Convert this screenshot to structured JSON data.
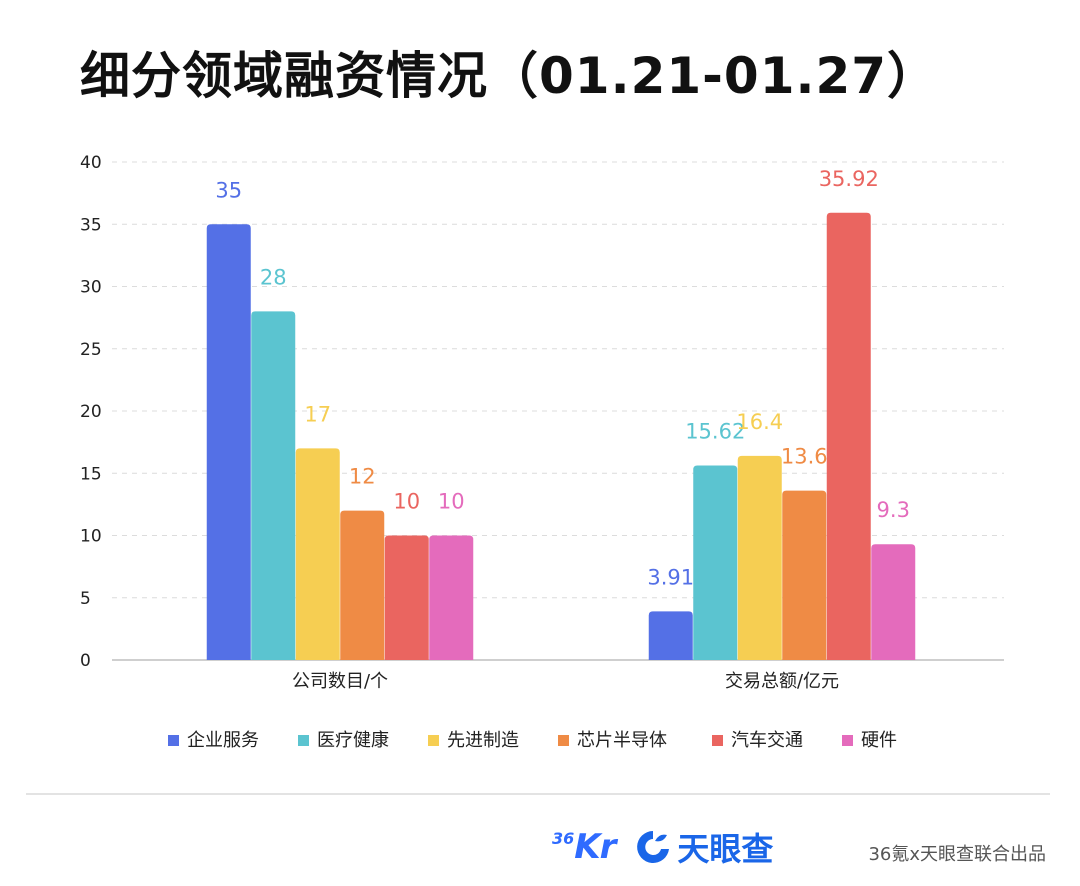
{
  "title": "细分领域融资情况（01.21-01.27）",
  "chart_data": {
    "type": "bar",
    "categories": [
      "公司数目/个",
      "交易总额/亿元"
    ],
    "series": [
      {
        "name": "企业服务",
        "color": "#5470e6",
        "values": [
          35,
          3.91
        ],
        "labels": [
          "35",
          "3.91"
        ]
      },
      {
        "name": "医疗健康",
        "color": "#5bc4d0",
        "values": [
          28,
          15.62
        ],
        "labels": [
          "28",
          "15.62"
        ]
      },
      {
        "name": "先进制造",
        "color": "#f6ce52",
        "values": [
          17,
          16.4
        ],
        "labels": [
          "17",
          "16.4"
        ]
      },
      {
        "name": "芯片半导体",
        "color": "#ef8b45",
        "values": [
          12,
          13.6
        ],
        "labels": [
          "12",
          "13.6"
        ]
      },
      {
        "name": "汽车交通",
        "color": "#ea6560",
        "values": [
          10,
          35.92
        ],
        "labels": [
          "10",
          "35.92"
        ]
      },
      {
        "name": "硬件",
        "color": "#e46bbc",
        "values": [
          10,
          9.3
        ],
        "labels": [
          "10",
          "9.3"
        ]
      }
    ],
    "yticks": [
      "0",
      "5",
      "10",
      "15",
      "20",
      "25",
      "30",
      "35",
      "40"
    ],
    "ylim": [
      0,
      40
    ],
    "grid": true,
    "legend": "bottom"
  },
  "footer": {
    "logo_36kr_num": "36",
    "logo_36kr_text": "Kr",
    "logo_tianyancha": "天眼查",
    "credit": "36氪x天眼查联合出品"
  }
}
